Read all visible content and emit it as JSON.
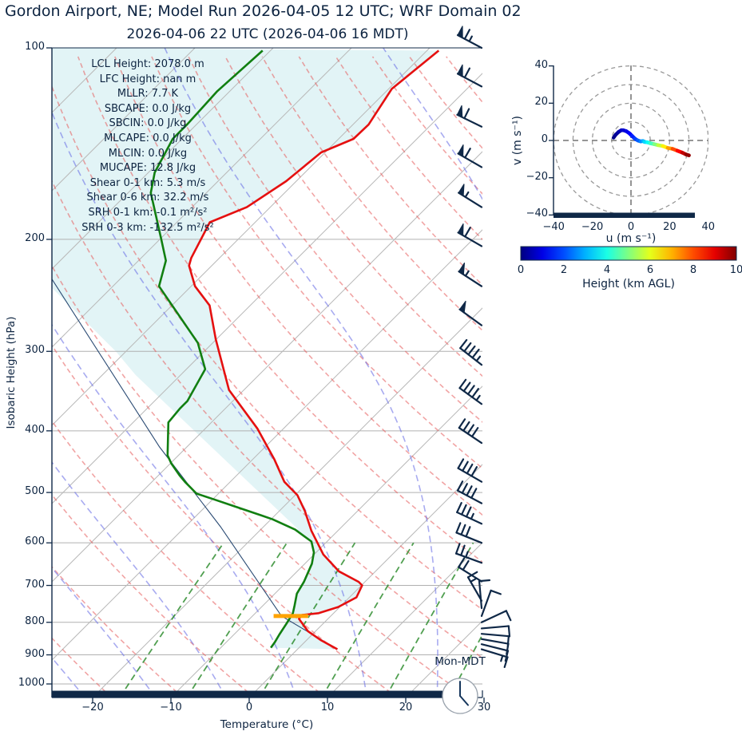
{
  "title": "Gordon Airport, NE; Model Run 2026-04-05 12 UTC; WRF Domain 02",
  "subtitle": "2026-04-06 22 UTC  (2026-04-06 16 MDT)",
  "clock": {
    "label": "Mon-MDT",
    "hour": 16,
    "minute": 0
  },
  "colors": {
    "navy": "#0f2847",
    "temperature": "#e51010",
    "dewpoint": "#117f11",
    "parcel": "#2a4a73",
    "lcl": "#ffa200",
    "shade": "#e2f4f6",
    "isotherm": "#b9b9b9",
    "isobar": "#b0b0b0",
    "dry_adiabat": "rgba(230,90,90,0.55)",
    "moist_adiabat": "rgba(110,115,230,0.60)",
    "mixing_ratio": "rgba(36,135,36,0.80)",
    "grid_dash": "#999999"
  },
  "skewt": {
    "ylabel": "Isobaric Height (hPa)",
    "xlabel": "Temperature (°C)",
    "pressure_ticks": [
      100,
      200,
      300,
      400,
      500,
      600,
      700,
      800,
      900,
      1000
    ],
    "temp_ticks": [
      -20,
      -10,
      0,
      10,
      20,
      30
    ],
    "indices": [
      "LCL Height: 2078.0 m",
      "LFC Height: nan m",
      "MLLR: 7.7 K",
      "SBCAPE: 0.0 J/kg",
      "SBCIN: 0.0 J/kg",
      "MLCAPE: 0.0 J/kg",
      "MLCIN: 0.0 J/kg",
      "MUCAPE: 12.8 J/kg",
      "Shear 0-1 km: 5.3 m/s",
      "Shear 0-6 km: 32.2 m/s",
      "SRH 0-1 km: -0.1 m²/s²",
      "SRH 0-3 km: -132.5 m²/s²"
    ]
  },
  "hodograph": {
    "xlabel": "u (m s⁻¹)",
    "ylabel": "v (m s⁻¹)",
    "ticks": [
      -40,
      -20,
      0,
      20,
      40
    ]
  },
  "colorbar": {
    "label": "Height (km AGL)",
    "ticks": [
      0,
      2,
      4,
      6,
      8,
      10
    ],
    "min": 0,
    "max": 10
  },
  "chart_data": {
    "skewt": {
      "type": "line",
      "x_axis": {
        "label": "Temperature (°C)",
        "lim": [
          -25,
          30
        ],
        "ticks": [
          -20,
          -10,
          0,
          10,
          20,
          30
        ]
      },
      "y_axis": {
        "label": "Isobaric Height (hPa)",
        "lim": [
          1050,
          100
        ],
        "scale": "log",
        "ticks": [
          100,
          200,
          300,
          400,
          500,
          600,
          700,
          800,
          900,
          1000
        ]
      },
      "series": [
        {
          "name": "temperature",
          "units": "hPa,degC",
          "points": [
            [
              101,
              -58.5
            ],
            [
              116,
              -59.6
            ],
            [
              132,
              -58.0
            ],
            [
              139,
              -58.1
            ],
            [
              146,
              -60.5
            ],
            [
              162,
              -61.3
            ],
            [
              178,
              -63.0
            ],
            [
              188,
              -65.8
            ],
            [
              214,
              -63.6
            ],
            [
              220,
              -62.9
            ],
            [
              237,
              -59.5
            ],
            [
              254,
              -55.2
            ],
            [
              287,
              -50.1
            ],
            [
              345,
              -41.9
            ],
            [
              397,
              -33.3
            ],
            [
              443,
              -27.3
            ],
            [
              481,
              -23.1
            ],
            [
              505,
              -19.7
            ],
            [
              535,
              -16.7
            ],
            [
              574,
              -13.4
            ],
            [
              626,
              -8.8
            ],
            [
              665,
              -4.7
            ],
            [
              691,
              -0.8
            ],
            [
              700,
              0.1
            ],
            [
              731,
              0.9
            ],
            [
              757,
              -0.2
            ],
            [
              774,
              -1.9
            ],
            [
              779,
              -3.8
            ],
            [
              790,
              -3.7
            ],
            [
              826,
              -1.0
            ],
            [
              854,
              1.9
            ],
            [
              882,
              5.1
            ]
          ]
        },
        {
          "name": "dewpoint",
          "units": "hPa,degC",
          "points": [
            [
              101,
              -81.0
            ],
            [
              117,
              -81.6
            ],
            [
              132,
              -81.2
            ],
            [
              139,
              -81.2
            ],
            [
              157,
              -79.2
            ],
            [
              169,
              -77.1
            ],
            [
              201,
              -69.6
            ],
            [
              216,
              -66.5
            ],
            [
              237,
              -64.1
            ],
            [
              291,
              -51.9
            ],
            [
              320,
              -47.6
            ],
            [
              359,
              -45.8
            ],
            [
              369,
              -45.8
            ],
            [
              388,
              -45.5
            ],
            [
              437,
              -41.4
            ],
            [
              450,
              -39.9
            ],
            [
              470,
              -37.3
            ],
            [
              481,
              -35.8
            ],
            [
              502,
              -32.8
            ],
            [
              512,
              -30.0
            ],
            [
              525,
              -26.5
            ],
            [
              543,
              -21.8
            ],
            [
              551,
              -19.8
            ],
            [
              572,
              -15.6
            ],
            [
              597,
              -12.0
            ],
            [
              621,
              -10.3
            ],
            [
              647,
              -9.1
            ],
            [
              691,
              -7.8
            ],
            [
              721,
              -7.2
            ],
            [
              752,
              -6.0
            ],
            [
              774,
              -5.2
            ],
            [
              803,
              -4.7
            ],
            [
              836,
              -4.2
            ],
            [
              860,
              -3.8
            ],
            [
              877,
              -3.6
            ]
          ]
        },
        {
          "name": "parcel-path",
          "units": "hPa,degC",
          "points": [
            [
              882,
              5.1
            ],
            [
              782,
              -6.3
            ],
            [
              566,
              -25.5
            ],
            [
              424,
              -43.5
            ],
            [
              229,
              -79.2
            ]
          ]
        }
      ],
      "lcl_marker": {
        "pressure": 782,
        "t_from": -7.3,
        "t_to": -2.9
      },
      "shade_left_boundary": [
        [
          100,
          -108.3
        ],
        [
          238,
          -77.7
        ],
        [
          300,
          -61.3
        ],
        [
          327,
          -55.7
        ],
        [
          571,
          -15.3
        ]
      ],
      "wind_barbs": [
        [
          100,
          65,
          298
        ],
        [
          115,
          60,
          298
        ],
        [
          133,
          60,
          296
        ],
        [
          154,
          60,
          300
        ],
        [
          178,
          55,
          302
        ],
        [
          205,
          60,
          300
        ],
        [
          237,
          55,
          303
        ],
        [
          273,
          50,
          306
        ],
        [
          315,
          45,
          308
        ],
        [
          363,
          45,
          306
        ],
        [
          418,
          40,
          304
        ],
        [
          481,
          40,
          300
        ],
        [
          520,
          40,
          298
        ],
        [
          560,
          35,
          295
        ],
        [
          600,
          30,
          292
        ],
        [
          645,
          25,
          290
        ],
        [
          690,
          20,
          302
        ],
        [
          740,
          15,
          330
        ],
        [
          760,
          12,
          355
        ],
        [
          782,
          10,
          20
        ],
        [
          800,
          10,
          65
        ],
        [
          818,
          12,
          85
        ],
        [
          834,
          12,
          95
        ],
        [
          850,
          12,
          100
        ],
        [
          866,
          10,
          104
        ],
        [
          882,
          15,
          107
        ]
      ],
      "background": {
        "isotherms_degC": [
          -120,
          -110,
          -100,
          -90,
          -80,
          -70,
          -60,
          -50,
          -40,
          -30,
          -20,
          -10,
          0,
          10,
          20,
          30,
          40
        ],
        "dry_adiabats_thetaK_range": [
          225,
          441,
          9
        ],
        "moist_adiabat_startC": [
          -48,
          -39,
          -30,
          -21,
          -12,
          -3,
          6,
          15,
          24,
          33
        ],
        "mixing_ratios_gkg": [
          1,
          2,
          4,
          7,
          12,
          20,
          30
        ],
        "mixing_ratio_top_hPa": 600
      }
    },
    "hodograph": {
      "type": "line",
      "lim": [
        -40,
        40
      ],
      "rings": [
        10,
        20,
        30,
        40
      ],
      "points_u_v_km": [
        [
          -9,
          1.5,
          0
        ],
        [
          -8,
          3,
          0.15
        ],
        [
          -6.5,
          4.5,
          0.35
        ],
        [
          -5,
          5.5,
          0.55
        ],
        [
          -4,
          5.5,
          0.7
        ],
        [
          -2.5,
          5,
          0.9
        ],
        [
          -1,
          4,
          1.1
        ],
        [
          0.5,
          2.5,
          1.4
        ],
        [
          2,
          1,
          1.7
        ],
        [
          3.5,
          0,
          2.0
        ],
        [
          5,
          -0.5,
          2.4
        ],
        [
          6.2,
          -0.3,
          2.8
        ],
        [
          7,
          -0.8,
          3.2
        ],
        [
          8.5,
          -1,
          3.6
        ],
        [
          10,
          -1.5,
          4.1
        ],
        [
          12,
          -2,
          4.7
        ],
        [
          14,
          -2.5,
          5.3
        ],
        [
          16.5,
          -3,
          6.0
        ],
        [
          19,
          -4,
          6.8
        ],
        [
          21.5,
          -4.5,
          7.6
        ],
        [
          24,
          -5.5,
          8.4
        ],
        [
          26.5,
          -6.5,
          9.1
        ],
        [
          28.5,
          -7.5,
          9.6
        ],
        [
          30,
          -8,
          10
        ]
      ]
    },
    "colorbar": {
      "type": "heatmap",
      "min": 0,
      "max": 10,
      "ticks": [
        0,
        2,
        4,
        6,
        8,
        10
      ],
      "cmap": "jet"
    }
  }
}
